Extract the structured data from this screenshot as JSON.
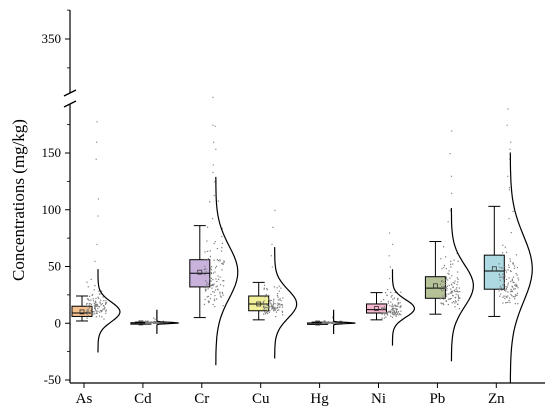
{
  "chart_data": {
    "type": "box",
    "title": "",
    "xlabel": "",
    "ylabel": "Concentrations (mg/kg)",
    "axis_break": true,
    "y_lower_ticks": [
      "-50",
      "0",
      "50",
      "100",
      "150"
    ],
    "y_upper_ticks": [
      "350"
    ],
    "y_lower_range": [
      -50,
      180
    ],
    "y_upper_range": [
      240,
      385
    ],
    "categories": [
      "As",
      "Cd",
      "Cr",
      "Cu",
      "Hg",
      "Ni",
      "Pb",
      "Zn"
    ],
    "series": [
      {
        "box_color": "#f5c28f",
        "min": 2,
        "q1": 6,
        "median": 9,
        "q3": 15,
        "max": 24,
        "mean": 10,
        "scatter_min": 2,
        "scatter_max": 50,
        "outliers": [
          55,
          70,
          95,
          110,
          145,
          160,
          178
        ]
      },
      {
        "box_color": "#d8d8d8",
        "min": 0,
        "q1": 0,
        "median": 0.2,
        "q3": 0.5,
        "max": 1,
        "mean": 0.3,
        "scatter_min": 0,
        "scatter_max": 3,
        "outliers": [
          4,
          5
        ]
      },
      {
        "box_color": "#c9b3dc",
        "min": 5,
        "q1": 32,
        "median": 44,
        "q3": 56,
        "max": 86,
        "mean": 45,
        "scatter_min": 5,
        "scatter_max": 120,
        "outliers": [
          125,
          140,
          160,
          175,
          195,
          215,
          235,
          255,
          275,
          300
        ]
      },
      {
        "box_color": "#f1ef9a",
        "min": 3,
        "q1": 11,
        "median": 17,
        "q3": 24,
        "max": 36,
        "mean": 17,
        "scatter_min": 3,
        "scatter_max": 45,
        "outliers": [
          50,
          60,
          70,
          85,
          100
        ]
      },
      {
        "box_color": "#d8d8d8",
        "min": 0,
        "q1": 0,
        "median": 0.1,
        "q3": 0.3,
        "max": 1,
        "mean": 0.2,
        "scatter_min": 0,
        "scatter_max": 3,
        "outliers": [
          5,
          6
        ]
      },
      {
        "box_color": "#f5b7cf",
        "min": 3,
        "q1": 9,
        "median": 12,
        "q3": 17,
        "max": 27,
        "mean": 13,
        "scatter_min": 3,
        "scatter_max": 35,
        "outliers": [
          40,
          50,
          60,
          70,
          80
        ]
      },
      {
        "box_color": "#b5c196",
        "min": 8,
        "q1": 22,
        "median": 31,
        "q3": 41,
        "max": 72,
        "mean": 33,
        "scatter_min": 8,
        "scatter_max": 80,
        "outliers": [
          90,
          100,
          115,
          130,
          150,
          170
        ]
      },
      {
        "box_color": "#add9e2",
        "min": 6,
        "q1": 30,
        "median": 46,
        "q3": 60,
        "max": 103,
        "mean": 48,
        "scatter_min": 6,
        "scatter_max": 110,
        "outliers": [
          120,
          130,
          145,
          160,
          175,
          195,
          220,
          255,
          290
        ]
      }
    ]
  }
}
